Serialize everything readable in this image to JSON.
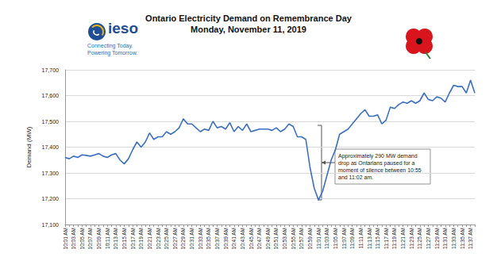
{
  "chart_data": {
    "type": "line",
    "title": "Ontario Electricity Demand on Remembrance Day",
    "subtitle": "Monday, November 11, 2019",
    "y_label": "Demand (MW)",
    "logo": {
      "name": "ieso",
      "tagline": [
        "Connecting Today.",
        "Powering Tomorrow."
      ]
    },
    "annotation": "Approximately 290 MW demand drop as Ontarians paused for a moment of silence between 10:55 and 11:02 am.",
    "color": "#3a6fc4",
    "grid": true,
    "ylim": [
      17100,
      17700
    ],
    "yticks": [
      {
        "value": 17100,
        "label": "17,100"
      },
      {
        "value": 17200,
        "label": "17,200"
      },
      {
        "value": 17300,
        "label": "17,300"
      },
      {
        "value": 17400,
        "label": "17,400"
      },
      {
        "value": 17500,
        "label": "17,500"
      },
      {
        "value": 17600,
        "label": "17,600"
      },
      {
        "value": 17700,
        "label": "17,700"
      }
    ],
    "categories": [
      "10:01 AM",
      null,
      "10:03 AM",
      null,
      "10:05 AM",
      null,
      "10:07 AM",
      null,
      "10:09 AM",
      null,
      "10:11 AM",
      null,
      "10:13 AM",
      null,
      "10:15 AM",
      null,
      "10:17 AM",
      null,
      "10:19 AM",
      null,
      "10:21 AM",
      null,
      "10:23 AM",
      null,
      "10:25 AM",
      null,
      "10:27 AM",
      null,
      "10:29 AM",
      null,
      "10:31 AM",
      null,
      "10:33 AM",
      null,
      "10:35 AM",
      null,
      "10:37 AM",
      null,
      "10:39 AM",
      null,
      "10:41 AM",
      null,
      "10:43 AM",
      null,
      "10:45 AM",
      null,
      "10:47 AM",
      null,
      "10:49 AM",
      null,
      "10:51 AM",
      null,
      "10:53 AM",
      null,
      "10:55 AM",
      null,
      "10:57 AM",
      null,
      "10:59 AM",
      null,
      "11:01 AM",
      null,
      "11:03 AM",
      null,
      "11:05 AM",
      null,
      "11:07 AM",
      null,
      "11:09 AM",
      null,
      "11:11 AM",
      null,
      "11:13 AM",
      null,
      "11:15 AM",
      null,
      "11:17 AM",
      null,
      "11:19 AM",
      null,
      "11:21 AM",
      null,
      "11:23 AM",
      null,
      "11:25 AM",
      null,
      "11:27 AM",
      null,
      "11:29 AM",
      null,
      "11:31 AM",
      null,
      "11:33 AM",
      null,
      "11:35 AM",
      null,
      "11:37 AM",
      null
    ],
    "values": [
      17360,
      17355,
      17365,
      17360,
      17370,
      17368,
      17365,
      17370,
      17375,
      17365,
      17360,
      17370,
      17375,
      17350,
      17335,
      17355,
      17390,
      17420,
      17400,
      17420,
      17455,
      17430,
      17440,
      17440,
      17460,
      17450,
      17460,
      17475,
      17510,
      17490,
      17490,
      17475,
      17460,
      17470,
      17465,
      17500,
      17475,
      17480,
      17470,
      17495,
      17460,
      17480,
      17465,
      17490,
      17460,
      17465,
      17470,
      17470,
      17470,
      17465,
      17475,
      17460,
      17470,
      17490,
      17480,
      17440,
      17440,
      17430,
      17320,
      17240,
      17195,
      17230,
      17290,
      17350,
      17390,
      17450,
      17460,
      17470,
      17490,
      17510,
      17530,
      17545,
      17520,
      17520,
      17525,
      17490,
      17505,
      17555,
      17550,
      17565,
      17575,
      17570,
      17580,
      17570,
      17580,
      17610,
      17585,
      17580,
      17595,
      17590,
      17575,
      17610,
      17640,
      17635,
      17635,
      17610,
      17660,
      17610
    ]
  }
}
